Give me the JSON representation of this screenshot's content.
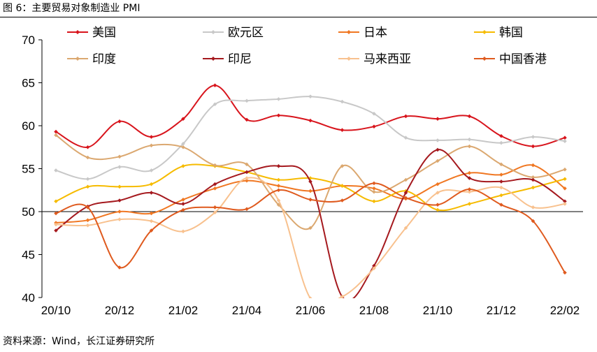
{
  "title": "图 6：主要贸易对象制造业 PMI",
  "source": "资料来源：Wind，长江证券研究所",
  "chart_data": {
    "type": "line",
    "title": "主要贸易对象制造业 PMI",
    "xlabel": "",
    "ylabel": "",
    "ylim": [
      40,
      70
    ],
    "yticks": [
      40,
      45,
      50,
      55,
      60,
      65,
      70
    ],
    "reference_line": 50,
    "x": [
      "20/10",
      "20/11",
      "20/12",
      "21/01",
      "21/02",
      "21/03",
      "21/04",
      "21/05",
      "21/06",
      "21/07",
      "21/08",
      "21/09",
      "21/10",
      "21/11",
      "21/12",
      "22/01",
      "22/02"
    ],
    "xtick_labels": [
      "20/10",
      "20/12",
      "21/02",
      "21/04",
      "21/06",
      "21/08",
      "21/10",
      "21/12",
      "22/02"
    ],
    "xtick_index": [
      0,
      2,
      4,
      6,
      8,
      10,
      12,
      14,
      16
    ],
    "series": [
      {
        "name": "美国",
        "color": "#d8141c",
        "values": [
          59.3,
          57.5,
          60.5,
          58.7,
          60.8,
          64.7,
          60.7,
          61.2,
          60.6,
          59.5,
          59.9,
          61.1,
          60.8,
          61.1,
          58.8,
          57.6,
          58.6
        ]
      },
      {
        "name": "欧元区",
        "color": "#c8c8c8",
        "values": [
          54.8,
          53.8,
          55.2,
          54.8,
          57.9,
          62.5,
          62.9,
          63.1,
          63.4,
          62.8,
          61.4,
          58.6,
          58.3,
          58.4,
          58.0,
          58.7,
          58.2
        ]
      },
      {
        "name": "日本",
        "color": "#f07722",
        "values": [
          48.7,
          49.0,
          50.0,
          49.8,
          51.4,
          52.7,
          53.6,
          53.0,
          52.4,
          53.0,
          52.7,
          51.5,
          53.2,
          54.5,
          54.3,
          55.4,
          52.7
        ]
      },
      {
        "name": "韩国",
        "color": "#f6bb00",
        "values": [
          51.2,
          52.9,
          52.9,
          53.2,
          55.3,
          55.3,
          54.6,
          53.7,
          53.9,
          53.0,
          51.2,
          52.4,
          50.2,
          50.9,
          51.9,
          52.8,
          53.8
        ]
      },
      {
        "name": "印度",
        "color": "#dba870",
        "values": [
          58.9,
          56.3,
          56.4,
          57.7,
          57.5,
          55.4,
          55.5,
          50.8,
          48.1,
          55.3,
          52.3,
          53.7,
          55.9,
          57.6,
          55.5,
          54.0,
          54.9
        ]
      },
      {
        "name": "印尼",
        "color": "#a5191e",
        "values": [
          47.8,
          50.6,
          51.3,
          52.2,
          50.9,
          53.2,
          54.6,
          55.3,
          53.5,
          40.1,
          43.7,
          52.2,
          57.2,
          53.9,
          53.5,
          53.7,
          51.2
        ]
      },
      {
        "name": "马来西亚",
        "color": "#f8c18e",
        "values": [
          48.5,
          48.4,
          49.1,
          48.9,
          47.7,
          49.9,
          53.9,
          51.3,
          39.9,
          40.1,
          43.4,
          48.1,
          52.2,
          52.3,
          52.8,
          50.5,
          50.9
        ]
      },
      {
        "name": "中国香港",
        "color": "#df5a1e",
        "values": [
          49.8,
          50.5,
          43.5,
          47.8,
          50.2,
          50.5,
          50.3,
          52.5,
          51.4,
          51.3,
          53.3,
          51.6,
          50.8,
          52.6,
          50.8,
          48.9,
          42.9
        ]
      }
    ],
    "legend_position": "top"
  }
}
